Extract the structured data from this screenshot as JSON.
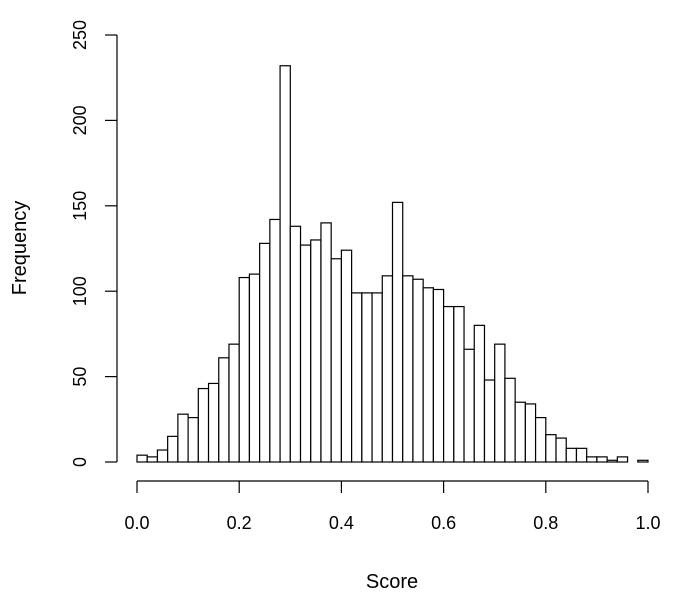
{
  "chart_data": {
    "type": "bar",
    "title": "",
    "xlabel": "Score",
    "ylabel": "Frequency",
    "xlim": [
      0.0,
      1.0
    ],
    "ylim": [
      0,
      250
    ],
    "x_ticks": [
      0.0,
      0.2,
      0.4,
      0.6,
      0.8,
      1.0
    ],
    "x_tick_labels": [
      "0.0",
      "0.2",
      "0.4",
      "0.6",
      "0.8",
      "1.0"
    ],
    "y_ticks": [
      0,
      50,
      100,
      150,
      200,
      250
    ],
    "y_tick_labels": [
      "0",
      "50",
      "100",
      "150",
      "200",
      "250"
    ],
    "bin_width": 0.02,
    "bin_starts": [
      0.0,
      0.02,
      0.04,
      0.06,
      0.08,
      0.1,
      0.12,
      0.14,
      0.16,
      0.18,
      0.2,
      0.22,
      0.24,
      0.26,
      0.28,
      0.3,
      0.32,
      0.34,
      0.36,
      0.38,
      0.4,
      0.42,
      0.44,
      0.46,
      0.48,
      0.5,
      0.52,
      0.54,
      0.56,
      0.58,
      0.6,
      0.62,
      0.64,
      0.66,
      0.68,
      0.7,
      0.72,
      0.74,
      0.76,
      0.78,
      0.8,
      0.82,
      0.84,
      0.86,
      0.88,
      0.9,
      0.92,
      0.94,
      0.96,
      0.98
    ],
    "values": [
      4,
      3,
      7,
      15,
      28,
      26,
      43,
      46,
      61,
      69,
      108,
      110,
      128,
      142,
      232,
      138,
      127,
      130,
      140,
      119,
      124,
      99,
      99,
      99,
      109,
      152,
      109,
      107,
      102,
      101,
      91,
      91,
      66,
      80,
      48,
      69,
      49,
      35,
      34,
      26,
      16,
      14,
      8,
      8,
      3,
      3,
      1,
      3,
      0,
      1
    ],
    "grid": false
  }
}
